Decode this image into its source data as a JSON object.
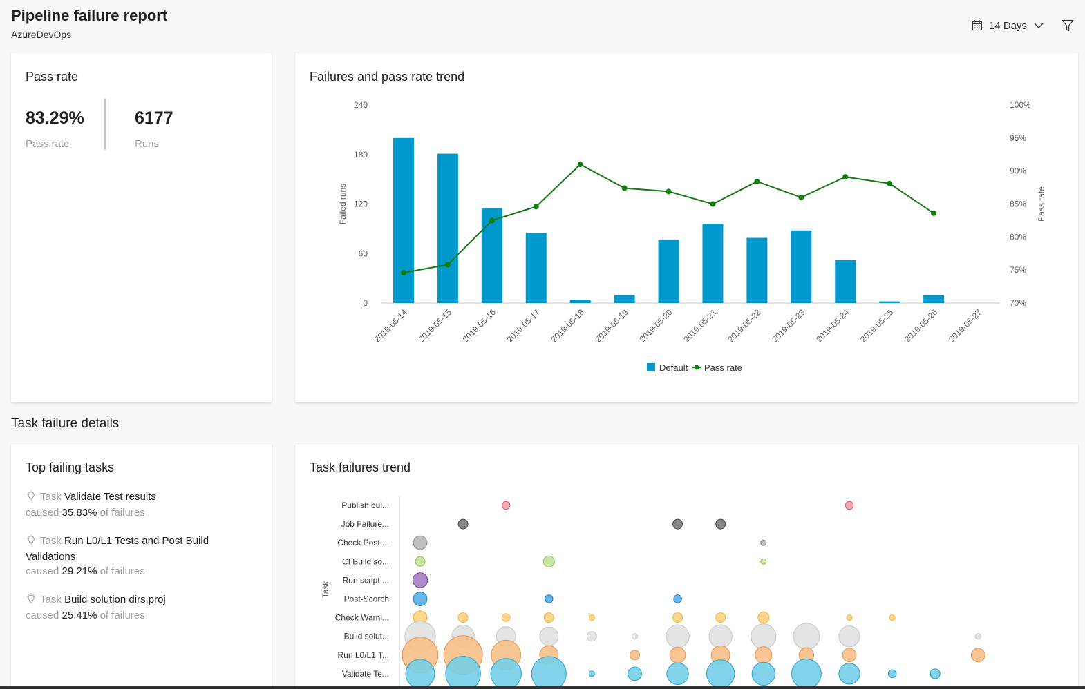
{
  "header": {
    "title": "Pipeline failure report",
    "subtitle": "AzureDevOps",
    "days_label": "14 Days"
  },
  "pass_rate_card": {
    "title": "Pass rate",
    "pass_rate_value": "83.29%",
    "pass_rate_label": "Pass rate",
    "runs_value": "6177",
    "runs_label": "Runs"
  },
  "trend_card": {
    "title": "Failures and pass rate trend"
  },
  "task_section": {
    "title": "Task failure details"
  },
  "top_tasks_card": {
    "title": "Top failing tasks",
    "items": [
      {
        "prefix": "Task",
        "name": "Validate Test results",
        "caused": "caused",
        "pct": "35.83%",
        "suffix": "of failures"
      },
      {
        "prefix": "Task",
        "name": "Run L0/L1 Tests and Post Build Validations",
        "caused": "caused",
        "pct": "29.21%",
        "suffix": "of failures"
      },
      {
        "prefix": "Task",
        "name": "Build solution dirs.proj",
        "caused": "caused",
        "pct": "25.41%",
        "suffix": "of failures"
      }
    ]
  },
  "task_trend_card": {
    "title": "Task failures trend"
  },
  "colors": {
    "bar": "#0099cc",
    "line": "#107c10"
  },
  "chart_data": [
    {
      "type": "bar+line",
      "categories": [
        "2019-05-14",
        "2019-05-15",
        "2019-05-16",
        "2019-05-17",
        "2019-05-18",
        "2019-05-19",
        "2019-05-20",
        "2019-05-21",
        "2019-05-22",
        "2019-05-23",
        "2019-05-24",
        "2019-05-25",
        "2019-05-26",
        "2019-05-27"
      ],
      "series": [
        {
          "name": "Default",
          "type": "bar",
          "axis": "left",
          "values": [
            200,
            181,
            115,
            85,
            4,
            10,
            77,
            96,
            79,
            88,
            52,
            2,
            10,
            null
          ]
        },
        {
          "name": "Pass rate",
          "type": "line",
          "axis": "right",
          "values": [
            74.6,
            75.8,
            82.5,
            84.6,
            91.0,
            87.4,
            86.9,
            85.0,
            88.4,
            86.0,
            89.1,
            88.1,
            83.6,
            null
          ]
        }
      ],
      "ylabel": "Failed runs",
      "ylim": [
        0,
        240
      ],
      "yticks": [
        "0",
        "60",
        "120",
        "180",
        "240"
      ],
      "y2label": "Pass rate",
      "y2lim": [
        70,
        100
      ],
      "y2ticks": [
        "70%",
        "75%",
        "80%",
        "85%",
        "90%",
        "95%",
        "100%"
      ],
      "legend": "bottom"
    },
    {
      "type": "scatter",
      "ylabel": "Task",
      "tasks": [
        "Publish bui...",
        "Job Failure...",
        "Check Post ...",
        "CI Build so...",
        "Run script ...",
        "Post-Scorch",
        "Check Warni...",
        "Build solut...",
        "Run L0/L1 T...",
        "Validate Te..."
      ],
      "task_colors": [
        "#f4a0ae",
        "#7a7a7a",
        "#b8b8b8",
        "#c5e39a",
        "#a67cc4",
        "#5ab0e8",
        "#ffd37f",
        "#e1e1e1",
        "#f7c08a",
        "#76cfe8"
      ],
      "task_strokes": [
        "#d9536a",
        "#444444",
        "#888888",
        "#8fbf5a",
        "#6b3e8c",
        "#1a78c2",
        "#f2b33d",
        "#c6c6c6",
        "#e5914a",
        "#2aa0c6"
      ],
      "x_count": 14,
      "sizes": [
        [
          0,
          0,
          0,
          0,
          0,
          0,
          0,
          0,
          0,
          0,
          0,
          0,
          0,
          0
        ],
        [
          0,
          0,
          0,
          0,
          0,
          0,
          0,
          0,
          0,
          0,
          0,
          0,
          0,
          0
        ],
        [
          0,
          0,
          0,
          0,
          0,
          0,
          0,
          0,
          0,
          0,
          0,
          0,
          0,
          0
        ],
        [
          0,
          0,
          0,
          0,
          0,
          0,
          0,
          0,
          0,
          0,
          0,
          0,
          0,
          0
        ],
        [
          0,
          0,
          0,
          0,
          0,
          0,
          0,
          0,
          0,
          0,
          0,
          0,
          0,
          0
        ],
        [
          0,
          0,
          0,
          0,
          0,
          0,
          0,
          0,
          0,
          0,
          0,
          0,
          0,
          0
        ],
        [
          0,
          0,
          0,
          0,
          0,
          0,
          0,
          0,
          0,
          0,
          0,
          0,
          0,
          0
        ],
        [
          0,
          0,
          0,
          0,
          0,
          0,
          0,
          0,
          0,
          0,
          0,
          0,
          0,
          0
        ],
        [
          0,
          0,
          0,
          0,
          0,
          0,
          0,
          0,
          0,
          0,
          0,
          0,
          0,
          0
        ],
        [
          0,
          0,
          0,
          0,
          0,
          0,
          0,
          0,
          0,
          0,
          0,
          0,
          0,
          0
        ]
      ],
      "values": [
        [
          0,
          0,
          2,
          0,
          0,
          0,
          0,
          0,
          0,
          0,
          2,
          0,
          0,
          0
        ],
        [
          0,
          3,
          0,
          0,
          0,
          0,
          3,
          3,
          0,
          0,
          0,
          0,
          0,
          0
        ],
        [
          6,
          0,
          0,
          0,
          0,
          0,
          0,
          0,
          1,
          0,
          0,
          0,
          0,
          0
        ],
        [
          3,
          0,
          0,
          4,
          0,
          0,
          0,
          0,
          1,
          0,
          0,
          0,
          0,
          0
        ],
        [
          7,
          0,
          0,
          0,
          0,
          0,
          0,
          0,
          0,
          0,
          0,
          0,
          0,
          0
        ],
        [
          6,
          0,
          0,
          2,
          0,
          0,
          2,
          0,
          0,
          0,
          0,
          0,
          0,
          0
        ],
        [
          6,
          3,
          2,
          3,
          1,
          0,
          3,
          3,
          4,
          0,
          1,
          1,
          0,
          0
        ],
        [
          30,
          16,
          12,
          11,
          3,
          1,
          17,
          17,
          20,
          22,
          14,
          0,
          0,
          1
        ],
        [
          41,
          48,
          28,
          11,
          0,
          3,
          8,
          11,
          9,
          7,
          6,
          0,
          0,
          6
        ],
        [
          27,
          39,
          30,
          38,
          1,
          6,
          15,
          25,
          17,
          28,
          14,
          2,
          3,
          0
        ]
      ]
    }
  ]
}
